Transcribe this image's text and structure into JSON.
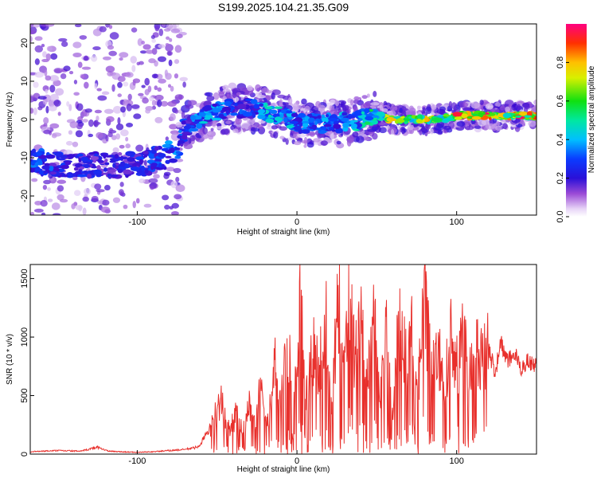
{
  "title": "S199.2025.104.21.35.G09",
  "colors": {
    "snr_line": "#e8302c",
    "spectrogram_low": "#b48ee6",
    "spectrogram_mid": "#0a1fd8",
    "spectrogram_high": "#e82020"
  },
  "chart_data": [
    {
      "type": "heatmap",
      "name": "spectrogram",
      "xlabel": "Height of straight line (km)",
      "ylabel": "Frequency (Hz)",
      "xlim": [
        -167,
        150
      ],
      "ylim": [
        -25,
        25
      ],
      "x_ticks": [
        -100,
        0,
        100
      ],
      "y_ticks": [
        -20,
        -10,
        0,
        10,
        20
      ],
      "colorbar": {
        "label": "Normalized spectral amplitude",
        "range": [
          0,
          1
        ],
        "ticks": [
          0.0,
          0.2,
          0.4,
          0.6,
          0.8
        ]
      },
      "ridge": {
        "description": "dominant frequency ridge",
        "x": [
          -165,
          -140,
          -115,
          -100,
          -85,
          -75,
          -70,
          -60,
          -50,
          -40,
          -30,
          -20,
          -10,
          0,
          10,
          25,
          40,
          50,
          60,
          70,
          80,
          90,
          100,
          110,
          120,
          130,
          140,
          148
        ],
        "y": [
          -11,
          -12,
          -12,
          -12,
          -10,
          -8,
          -2,
          0,
          2,
          3,
          3,
          2,
          1,
          -1,
          -1,
          -1,
          0,
          1,
          0,
          0,
          0,
          0,
          1,
          1,
          1,
          1,
          1,
          1
        ],
        "amplitude": [
          0.35,
          0.3,
          0.25,
          0.3,
          0.35,
          0.4,
          0.3,
          0.45,
          0.4,
          0.35,
          0.3,
          0.45,
          0.5,
          0.4,
          0.4,
          0.4,
          0.5,
          0.6,
          0.8,
          0.7,
          0.85,
          0.6,
          0.9,
          0.95,
          0.9,
          0.85,
          0.9,
          0.85
        ]
      }
    },
    {
      "type": "line",
      "name": "snr",
      "xlabel": "Height of straight line (km)",
      "ylabel": "SNR (10 * v/v)",
      "xlim": [
        -167,
        150
      ],
      "ylim": [
        0,
        1620
      ],
      "x_ticks": [
        -100,
        0,
        100
      ],
      "y_ticks": [
        0,
        500,
        1000,
        1500
      ],
      "series": [
        {
          "x": [
            -167,
            -150,
            -135,
            -125,
            -118,
            -110,
            -100,
            -90,
            -80,
            -70,
            -62,
            -56,
            -52,
            -48,
            -45,
            -42,
            -38,
            -34,
            -30,
            -26,
            -22,
            -18,
            -14,
            -10,
            -6,
            -2,
            2,
            6,
            10,
            14,
            18,
            22,
            26,
            30,
            33,
            34,
            36,
            40,
            44,
            48,
            52,
            56,
            60,
            64,
            68,
            72,
            76,
            80,
            84,
            88,
            92,
            96,
            100,
            104,
            108,
            112,
            116,
            120,
            124,
            128,
            132,
            136,
            140,
            144,
            148,
            150
          ],
          "y": [
            20,
            30,
            25,
            60,
            25,
            20,
            15,
            20,
            30,
            40,
            60,
            180,
            300,
            480,
            300,
            200,
            350,
            180,
            420,
            250,
            650,
            300,
            800,
            450,
            900,
            600,
            1250,
            500,
            900,
            700,
            1150,
            500,
            1300,
            650,
            1520,
            1620,
            800,
            1200,
            600,
            1180,
            450,
            1050,
            300,
            1150,
            800,
            1000,
            600,
            1300,
            700,
            950,
            500,
            1020,
            750,
            1000,
            650,
            950,
            800,
            900,
            700,
            950,
            780,
            870,
            720,
            800,
            760,
            780
          ]
        }
      ]
    }
  ]
}
